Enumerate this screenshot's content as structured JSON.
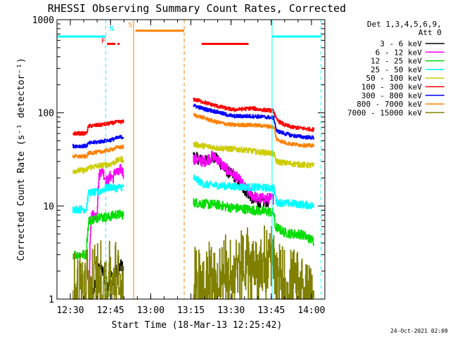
{
  "chart_data": {
    "type": "line",
    "title": "RHESSI Observing Summary Count Rates, Corrected",
    "xlabel": "Start Time (18-Mar-13 12:25:42)",
    "ylabel": "Corrected Count Rate (s⁻¹ detector⁻¹)",
    "y_scale": "log",
    "ylim": [
      1,
      1000
    ],
    "xlim_minutes_after_1225": [
      0,
      100
    ],
    "x_ticks": [
      {
        "label": "12:30",
        "min": 5
      },
      {
        "label": "12:45",
        "min": 20
      },
      {
        "label": "13:00",
        "min": 35
      },
      {
        "label": "13:15",
        "min": 50
      },
      {
        "label": "13:30",
        "min": 65
      },
      {
        "label": "13:45",
        "min": 80
      },
      {
        "label": "14:00",
        "min": 95
      }
    ],
    "y_ticks": [
      {
        "label": "1",
        "v": 1
      },
      {
        "label": "10",
        "v": 10
      },
      {
        "label": "100",
        "v": 100
      },
      {
        "label": "1000",
        "v": 1000
      }
    ],
    "legend_header": [
      "Det 1,3,4,5,6,9,",
      "Att 0"
    ],
    "legend_position": "top-right, outside plot",
    "series": [
      {
        "name": "3 - 6 keV",
        "color": "#000000",
        "noise": 0.06,
        "seg1": [
          [
            11.6,
            0
          ],
          [
            12,
            0
          ],
          [
            13,
            1.1
          ],
          [
            14,
            1.3
          ],
          [
            15,
            1.7
          ],
          [
            16,
            2.4
          ],
          [
            17,
            2.0
          ],
          [
            18,
            1.6
          ],
          [
            19,
            1.3
          ],
          [
            20,
            1.9
          ],
          [
            21,
            1.6
          ],
          [
            22,
            2.1
          ],
          [
            23,
            1.9
          ],
          [
            24,
            2.4
          ],
          [
            25,
            2.0
          ]
        ],
        "seg2": [
          [
            51,
            34
          ],
          [
            55,
            30
          ],
          [
            58,
            33
          ],
          [
            60,
            32
          ],
          [
            62,
            26
          ],
          [
            64,
            23
          ],
          [
            66,
            21
          ],
          [
            68,
            18
          ],
          [
            70,
            15
          ],
          [
            71,
            14
          ],
          [
            73,
            12
          ],
          [
            75,
            11
          ],
          [
            77,
            11
          ],
          [
            78,
            11.2
          ],
          [
            79,
            11
          ]
        ],
        "seg3": []
      },
      {
        "name": "6 - 12 keV",
        "color": "#ff00ff",
        "noise": 0.06,
        "seg1": [
          [
            11.6,
            0
          ],
          [
            12,
            0
          ],
          [
            13,
            8
          ],
          [
            14,
            8
          ],
          [
            15,
            8
          ],
          [
            16,
            23
          ],
          [
            17,
            25
          ],
          [
            18,
            20
          ],
          [
            19,
            18
          ],
          [
            20,
            21
          ],
          [
            21,
            20
          ],
          [
            22,
            24
          ],
          [
            23,
            22
          ],
          [
            24,
            25
          ],
          [
            25,
            22
          ]
        ],
        "seg2": [
          [
            51,
            32
          ],
          [
            55,
            30
          ],
          [
            58,
            34
          ],
          [
            60,
            32
          ],
          [
            62,
            27
          ],
          [
            64,
            24
          ],
          [
            66,
            22
          ],
          [
            68,
            19
          ],
          [
            70,
            16
          ],
          [
            71,
            15
          ],
          [
            73,
            13
          ],
          [
            75,
            12
          ],
          [
            77,
            12
          ],
          [
            80,
            12
          ],
          [
            81,
            12
          ]
        ],
        "seg3": []
      },
      {
        "name": "12 - 25 keV",
        "color": "#00dd00",
        "noise": 0.05,
        "seg1": [
          [
            6,
            3.0
          ],
          [
            11,
            3.0
          ],
          [
            12,
            7
          ],
          [
            13,
            7
          ],
          [
            14,
            7.3
          ],
          [
            15,
            7.4
          ],
          [
            16,
            8
          ],
          [
            17,
            7.5
          ],
          [
            18,
            7.6
          ],
          [
            19,
            7.5
          ],
          [
            20,
            7.7
          ],
          [
            21,
            7.9
          ],
          [
            22,
            8.1
          ],
          [
            23,
            8.0
          ],
          [
            24,
            8.2
          ],
          [
            25,
            8.0
          ]
        ],
        "seg2": [
          [
            51,
            11
          ],
          [
            55,
            10.5
          ],
          [
            60,
            10.3
          ],
          [
            65,
            9.6
          ],
          [
            70,
            9.3
          ],
          [
            75,
            8.9
          ],
          [
            80,
            8.6
          ],
          [
            81,
            8.4
          ],
          [
            81.5,
            6
          ],
          [
            85,
            5.2
          ],
          [
            88,
            5
          ],
          [
            91,
            5
          ],
          [
            94,
            4.5
          ],
          [
            96,
            4.2
          ]
        ],
        "seg3": []
      },
      {
        "name": "25 - 50 keV",
        "color": "#00ffff",
        "noise": 0.04,
        "seg1": [
          [
            6,
            9.2
          ],
          [
            11,
            9.2
          ],
          [
            12,
            14
          ],
          [
            16,
            14
          ],
          [
            17,
            15
          ],
          [
            20,
            16
          ],
          [
            22,
            15.5
          ],
          [
            24,
            16
          ],
          [
            25,
            16
          ]
        ],
        "seg2": [
          [
            51,
            20
          ],
          [
            55,
            17
          ],
          [
            60,
            16.6
          ],
          [
            65,
            16.2
          ],
          [
            70,
            16
          ],
          [
            75,
            15.8
          ],
          [
            80,
            15.6
          ],
          [
            81,
            15.5
          ],
          [
            82,
            11
          ],
          [
            85,
            10.7
          ],
          [
            90,
            10.5
          ],
          [
            96,
            10
          ]
        ],
        "seg3": []
      },
      {
        "name": "50 - 100 keV",
        "color": "#cccc00",
        "noise": 0.03,
        "seg1": [
          [
            6,
            24
          ],
          [
            11,
            24
          ],
          [
            12,
            26
          ],
          [
            16,
            27
          ],
          [
            20,
            28
          ],
          [
            22,
            30
          ],
          [
            24,
            32
          ],
          [
            25,
            31
          ]
        ],
        "seg2": [
          [
            51,
            46
          ],
          [
            55,
            44
          ],
          [
            60,
            42
          ],
          [
            65,
            41
          ],
          [
            70,
            40
          ],
          [
            75,
            38
          ],
          [
            80,
            37
          ],
          [
            81,
            36
          ],
          [
            82,
            30
          ],
          [
            85,
            29
          ],
          [
            90,
            28
          ],
          [
            96,
            27
          ]
        ],
        "seg3": []
      },
      {
        "name": "100 - 300 keV",
        "color": "#ff0000",
        "noise": 0.02,
        "seg1": [
          [
            6,
            60
          ],
          [
            11,
            60
          ],
          [
            12,
            72
          ],
          [
            16,
            74
          ],
          [
            20,
            77
          ],
          [
            22,
            79
          ],
          [
            24,
            80
          ],
          [
            25,
            80
          ]
        ],
        "seg2": [
          [
            51,
            140
          ],
          [
            55,
            130
          ],
          [
            58,
            122
          ],
          [
            60,
            118
          ],
          [
            63,
            112
          ],
          [
            66,
            108
          ],
          [
            70,
            110
          ],
          [
            73,
            112
          ],
          [
            76,
            108
          ],
          [
            80,
            106
          ],
          [
            81,
            104
          ],
          [
            82,
            84
          ],
          [
            85,
            74
          ],
          [
            88,
            70
          ],
          [
            92,
            68
          ],
          [
            96,
            66
          ]
        ],
        "seg3": []
      },
      {
        "name": "300 - 800 keV",
        "color": "#0000ff",
        "noise": 0.02,
        "seg1": [
          [
            6,
            44
          ],
          [
            11,
            44
          ],
          [
            12,
            47
          ],
          [
            16,
            49
          ],
          [
            20,
            51
          ],
          [
            22,
            53
          ],
          [
            24,
            55
          ],
          [
            25,
            55
          ]
        ],
        "seg2": [
          [
            51,
            120
          ],
          [
            55,
            110
          ],
          [
            58,
            105
          ],
          [
            60,
            102
          ],
          [
            63,
            96
          ],
          [
            66,
            92
          ],
          [
            70,
            92
          ],
          [
            73,
            92
          ],
          [
            76,
            91
          ],
          [
            80,
            89
          ],
          [
            81,
            88
          ],
          [
            82,
            64
          ],
          [
            85,
            60
          ],
          [
            88,
            57
          ],
          [
            92,
            55
          ],
          [
            96,
            54
          ]
        ],
        "seg3": []
      },
      {
        "name": "800 - 7000 keV",
        "color": "#ff8000",
        "noise": 0.02,
        "seg1": [
          [
            6,
            34
          ],
          [
            11,
            34
          ],
          [
            12,
            37
          ],
          [
            16,
            38
          ],
          [
            20,
            40
          ],
          [
            22,
            42
          ],
          [
            24,
            43
          ],
          [
            25,
            43
          ]
        ],
        "seg2": [
          [
            51,
            95
          ],
          [
            55,
            88
          ],
          [
            58,
            82
          ],
          [
            60,
            79
          ],
          [
            63,
            76
          ],
          [
            66,
            74
          ],
          [
            70,
            74
          ],
          [
            73,
            74
          ],
          [
            76,
            73
          ],
          [
            80,
            71
          ],
          [
            81,
            70
          ],
          [
            82,
            52
          ],
          [
            85,
            48
          ],
          [
            88,
            46
          ],
          [
            92,
            45
          ],
          [
            96,
            44
          ]
        ],
        "seg3": []
      },
      {
        "name": "7000 - 15000 keV",
        "color": "#808000",
        "noise": 0.35,
        "seg1": [
          [
            6,
            1.5
          ],
          [
            11,
            1.5
          ],
          [
            12,
            2
          ],
          [
            16,
            2
          ],
          [
            20,
            2
          ],
          [
            25,
            2
          ]
        ],
        "seg2": [
          [
            51,
            1.6
          ],
          [
            55,
            2
          ],
          [
            60,
            2
          ],
          [
            65,
            2.4
          ],
          [
            70,
            2.8
          ],
          [
            75,
            3
          ],
          [
            80,
            3
          ],
          [
            81,
            3
          ],
          [
            82,
            2
          ],
          [
            85,
            1.6
          ],
          [
            90,
            1.6
          ],
          [
            96,
            1.6
          ]
        ],
        "seg3": []
      }
    ],
    "annotations": [
      {
        "kind": "vline",
        "min": 18.2,
        "style": "dashed",
        "color": "#00ffff"
      },
      {
        "kind": "vline",
        "min": 28.6,
        "style": "solid",
        "color": "#ff8000"
      },
      {
        "kind": "vline",
        "min": 47.5,
        "style": "dashed",
        "color": "#ff8000"
      },
      {
        "kind": "vline",
        "min": 80.3,
        "style": "solid",
        "color": "#00ffff"
      },
      {
        "kind": "vline",
        "min": 98.6,
        "style": "dashed",
        "color": "#00ffff"
      },
      {
        "kind": "hbar",
        "from": 0,
        "to": 18.2,
        "v": 660,
        "color": "#00ffff"
      },
      {
        "kind": "hbar",
        "from": 80.3,
        "to": 98.6,
        "v": 660,
        "color": "#00ffff"
      },
      {
        "kind": "hbar",
        "from": 29.3,
        "to": 47.5,
        "v": 760,
        "color": "#ff8000"
      },
      {
        "kind": "hbar",
        "from": 54,
        "to": 71.5,
        "v": 550,
        "color": "#ff0000"
      },
      {
        "kind": "hbar",
        "from": 18.7,
        "to": 21.8,
        "v": 550,
        "color": "#ff0000"
      },
      {
        "kind": "dot",
        "min": 23.0,
        "v": 550,
        "color": "#ff0000"
      }
    ],
    "letter_labels": [
      {
        "text": "F",
        "min": 16.5,
        "v": 560,
        "color": "#ff0000"
      },
      {
        "text": "N",
        "min": 19.6,
        "v": 760,
        "color": "#00ffff"
      },
      {
        "text": "S",
        "min": 26.6,
        "v": 830,
        "color": "#ff8000"
      }
    ],
    "footer_date": "24-Oct-2021 02:09"
  }
}
